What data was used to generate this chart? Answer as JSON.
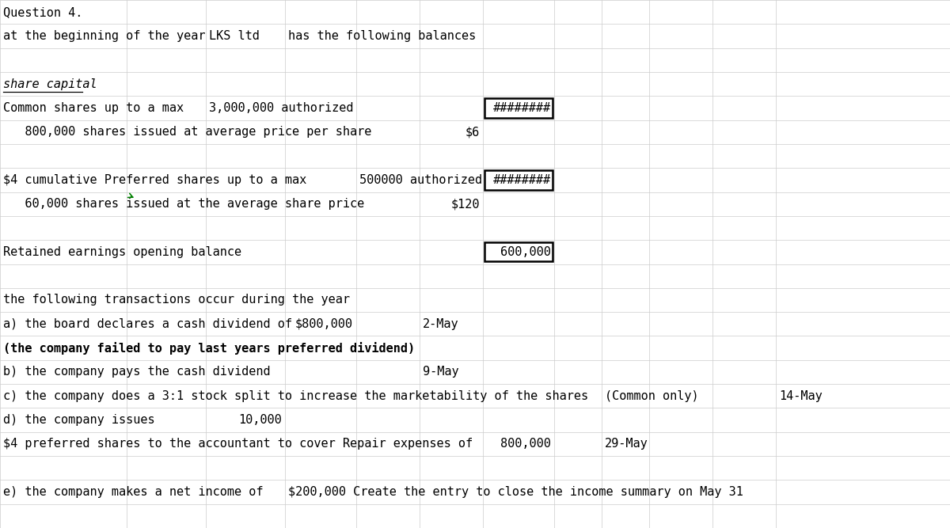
{
  "title": "Question 4.",
  "bg_color": "#ffffff",
  "grid_color": "#cccccc",
  "text_color": "#000000",
  "font_size": 11,
  "fig_width": 12.0,
  "fig_height": 6.67,
  "num_cols": 12,
  "num_rows": 22,
  "col_widths": [
    1.6,
    1.0,
    1.0,
    0.9,
    0.8,
    0.8,
    0.9,
    0.6,
    0.6,
    0.8,
    0.8,
    0.6
  ],
  "rows": [
    {
      "row": 0,
      "cells": [
        {
          "col": 0,
          "text": "Question 4.",
          "colspan": 3,
          "style": "normal",
          "align": "left"
        }
      ]
    },
    {
      "row": 1,
      "cells": [
        {
          "col": 0,
          "text": "at the beginning of the year",
          "colspan": 2,
          "style": "normal",
          "align": "left"
        },
        {
          "col": 2,
          "text": "LKS ltd",
          "colspan": 1,
          "style": "normal",
          "align": "left"
        },
        {
          "col": 3,
          "text": "has the following balances",
          "colspan": 3,
          "style": "normal",
          "align": "left"
        }
      ]
    },
    {
      "row": 2,
      "cells": []
    },
    {
      "row": 3,
      "cells": [
        {
          "col": 0,
          "text": "share capital",
          "colspan": 2,
          "style": "italic_underline",
          "align": "left"
        }
      ]
    },
    {
      "row": 4,
      "cells": [
        {
          "col": 0,
          "text": "Common shares up to a max",
          "colspan": 2,
          "style": "normal",
          "align": "left"
        },
        {
          "col": 2,
          "text": "3,000,000 authorized",
          "colspan": 2,
          "style": "normal",
          "align": "left"
        },
        {
          "col": 6,
          "text": "########",
          "colspan": 1,
          "style": "boxed",
          "align": "right"
        }
      ]
    },
    {
      "row": 5,
      "cells": [
        {
          "col": 0,
          "text": "   800,000 shares issued at average price per share",
          "colspan": 4,
          "style": "normal",
          "align": "left"
        },
        {
          "col": 5,
          "text": "$6",
          "colspan": 1,
          "style": "normal",
          "align": "right"
        }
      ]
    },
    {
      "row": 6,
      "cells": []
    },
    {
      "row": 7,
      "cells": [
        {
          "col": 0,
          "text": "$4 cumulative Preferred shares up to a max",
          "colspan": 3,
          "style": "normal",
          "align": "left"
        },
        {
          "col": 4,
          "text": "500000 authorized",
          "colspan": 2,
          "style": "normal",
          "align": "left"
        },
        {
          "col": 6,
          "text": "########",
          "colspan": 1,
          "style": "boxed",
          "align": "right"
        }
      ]
    },
    {
      "row": 8,
      "cells": [
        {
          "col": 0,
          "text": "   60,000 shares issued at the average share price",
          "colspan": 4,
          "style": "normal",
          "align": "left"
        },
        {
          "col": 5,
          "text": "$120",
          "colspan": 1,
          "style": "normal",
          "align": "right"
        }
      ]
    },
    {
      "row": 9,
      "cells": []
    },
    {
      "row": 10,
      "cells": [
        {
          "col": 0,
          "text": "Retained earnings opening balance",
          "colspan": 3,
          "style": "normal",
          "align": "left"
        },
        {
          "col": 6,
          "text": "600,000",
          "colspan": 1,
          "style": "boxed",
          "align": "right"
        }
      ]
    },
    {
      "row": 11,
      "cells": []
    },
    {
      "row": 12,
      "cells": [
        {
          "col": 0,
          "text": "the following transactions occur during the year",
          "colspan": 5,
          "style": "normal",
          "align": "left"
        }
      ]
    },
    {
      "row": 13,
      "cells": [
        {
          "col": 0,
          "text": "a) the board declares a cash dividend of",
          "colspan": 3,
          "style": "normal",
          "align": "left"
        },
        {
          "col": 3,
          "text": "$800,000",
          "colspan": 1,
          "style": "normal",
          "align": "right"
        },
        {
          "col": 5,
          "text": "2-May",
          "colspan": 1,
          "style": "normal",
          "align": "left"
        }
      ]
    },
    {
      "row": 14,
      "cells": [
        {
          "col": 0,
          "text": "(the company failed to pay last years preferred dividend)",
          "colspan": 6,
          "style": "bold",
          "align": "left"
        }
      ]
    },
    {
      "row": 15,
      "cells": [
        {
          "col": 0,
          "text": "b) the company pays the cash dividend",
          "colspan": 3,
          "style": "normal",
          "align": "left"
        },
        {
          "col": 5,
          "text": "9-May",
          "colspan": 1,
          "style": "normal",
          "align": "left"
        }
      ]
    },
    {
      "row": 16,
      "cells": [
        {
          "col": 0,
          "text": "c) the company does a 3:1 stock split to increase the marketability of the shares",
          "colspan": 6,
          "style": "normal",
          "align": "left"
        },
        {
          "col": 8,
          "text": "(Common only)",
          "colspan": 2,
          "style": "normal",
          "align": "left"
        },
        {
          "col": 11,
          "text": "14-May",
          "colspan": 1,
          "style": "normal",
          "align": "left"
        }
      ]
    },
    {
      "row": 17,
      "cells": [
        {
          "col": 0,
          "text": "d) the company issues",
          "colspan": 2,
          "style": "normal",
          "align": "left"
        },
        {
          "col": 2,
          "text": "10,000",
          "colspan": 1,
          "style": "normal",
          "align": "right"
        }
      ]
    },
    {
      "row": 18,
      "cells": [
        {
          "col": 0,
          "text": "$4 preferred shares to the accountant to cover Repair expenses of",
          "colspan": 5,
          "style": "normal",
          "align": "left"
        },
        {
          "col": 6,
          "text": "800,000",
          "colspan": 1,
          "style": "normal",
          "align": "right"
        },
        {
          "col": 8,
          "text": "29-May",
          "colspan": 2,
          "style": "normal",
          "align": "left"
        }
      ]
    },
    {
      "row": 19,
      "cells": []
    },
    {
      "row": 20,
      "cells": [
        {
          "col": 0,
          "text": "e) the company makes a net income of",
          "colspan": 3,
          "style": "normal",
          "align": "left"
        },
        {
          "col": 3,
          "text": "$200,000 Create the entry to close the income summary on May 31",
          "colspan": 8,
          "style": "normal",
          "align": "left"
        }
      ]
    },
    {
      "row": 21,
      "cells": []
    }
  ]
}
